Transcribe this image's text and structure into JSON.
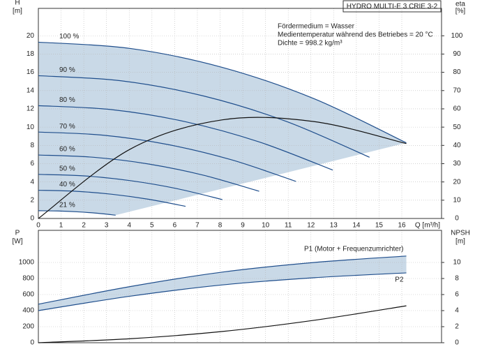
{
  "chart_data": [
    {
      "type": "line",
      "title": "HYDRO MULTI-E 3 CRIE 3-2",
      "annotations": [
        "Fördermedium = Wasser",
        "Medientemperatur während des Betriebes = 20 °C",
        "Dichte = 998.2 kg/m³"
      ],
      "xlabel": "Q [m³/h]",
      "ylabel": "H",
      "yunit": "[m]",
      "y2label": "eta",
      "y2unit": "[%]",
      "xlim": [
        0,
        17.75
      ],
      "xticks": [
        0,
        1,
        2,
        3,
        4,
        5,
        6,
        7,
        8,
        9,
        10,
        11,
        12,
        13,
        14,
        15,
        16
      ],
      "ylim": [
        0,
        23
      ],
      "yticks": [
        0,
        2,
        4,
        6,
        8,
        10,
        12,
        14,
        16,
        18,
        20
      ],
      "y2lim": [
        0,
        115
      ],
      "y2ticks": [
        0,
        10,
        20,
        30,
        40,
        50,
        60,
        70,
        80,
        90,
        100
      ],
      "grid": true,
      "fill": "#c9d9e7",
      "series": [
        {
          "name": "100 %",
          "color": "#1f4e8c",
          "x": [
            0,
            4.05,
            8.1,
            12.15,
            16.2
          ],
          "values": [
            19.3,
            18.61,
            16.54,
            13.1,
            8.28
          ]
        },
        {
          "name": "90 %",
          "color": "#1f4e8c",
          "x": [
            0,
            3.645,
            7.29,
            10.935,
            14.58
          ],
          "values": [
            15.63,
            15.07,
            13.4,
            10.61,
            6.7
          ]
        },
        {
          "name": "80 %",
          "color": "#1f4e8c",
          "x": [
            0,
            3.24,
            6.48,
            9.72,
            12.96
          ],
          "values": [
            12.35,
            11.91,
            10.59,
            8.38,
            5.3
          ]
        },
        {
          "name": "70 %",
          "color": "#1f4e8c",
          "x": [
            0,
            2.835,
            5.67,
            8.505,
            11.34
          ],
          "values": [
            9.46,
            9.12,
            8.11,
            6.42,
            4.06
          ]
        },
        {
          "name": "60 %",
          "color": "#1f4e8c",
          "x": [
            0,
            2.43,
            4.86,
            7.29,
            9.72
          ],
          "values": [
            6.95,
            6.7,
            5.96,
            4.72,
            2.98
          ]
        },
        {
          "name": "50 %",
          "color": "#1f4e8c",
          "x": [
            0,
            2.025,
            4.05,
            6.075,
            8.1
          ],
          "values": [
            4.83,
            4.66,
            4.14,
            3.28,
            2.07
          ]
        },
        {
          "name": "40 %",
          "color": "#1f4e8c",
          "x": [
            0,
            1.62,
            3.24,
            4.86,
            6.48
          ],
          "values": [
            3.09,
            2.98,
            2.65,
            2.1,
            1.33
          ]
        },
        {
          "name": "21 %",
          "color": "#1f4e8c",
          "x": [
            0,
            0.85,
            1.7,
            2.55,
            3.4
          ],
          "values": [
            0.85,
            0.82,
            0.73,
            0.58,
            0.36
          ]
        },
        {
          "color": "#111111",
          "axis": "y2",
          "x": [
            0,
            4.05,
            8.1,
            12.15,
            16.2
          ],
          "values": [
            0,
            38,
            54,
            53,
            41
          ]
        }
      ]
    },
    {
      "type": "line",
      "ylabel": "P",
      "yunit": "[W]",
      "y2label": "NPSH",
      "y2unit": "[m]",
      "xlim": [
        0,
        17.75
      ],
      "ylim": [
        0,
        1400
      ],
      "yticks": [
        0,
        200,
        400,
        600,
        800,
        1000
      ],
      "y2lim": [
        0,
        14
      ],
      "y2ticks": [
        0,
        2,
        4,
        6,
        8,
        10
      ],
      "grid": true,
      "fill": "#c9d9e7",
      "series": [
        {
          "name": "P1 (Motor + Frequenzumrichter)",
          "color": "#1f4e8c",
          "x": [
            0,
            4.05,
            8.1,
            12.15,
            16.2
          ],
          "values": [
            480,
            700,
            880,
            1000,
            1080
          ]
        },
        {
          "name": "P2",
          "color": "#1f4e8c",
          "x": [
            0,
            4.05,
            8.1,
            12.15,
            16.2
          ],
          "values": [
            400,
            580,
            720,
            810,
            870
          ]
        },
        {
          "color": "#111111",
          "axis": "y2",
          "x": [
            0,
            4.05,
            8.1,
            12.15,
            16.2
          ],
          "values": [
            0,
            0.5,
            1.4,
            2.8,
            4.6
          ]
        }
      ]
    }
  ]
}
